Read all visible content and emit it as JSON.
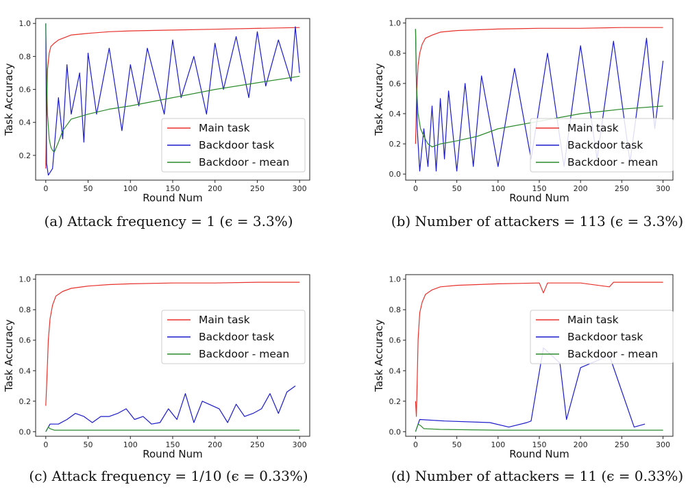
{
  "figure": {
    "panels": [
      {
        "caption": "(a)  Attack frequency = 1 (ϵ = 3.3%)",
        "xlabel": "Round Num",
        "ylabel": "Task Accuracy",
        "legend_position": "lower-right",
        "xticks": [
          0,
          50,
          100,
          150,
          200,
          250,
          300
        ],
        "yticks": [
          0.2,
          0.4,
          0.6,
          0.8,
          1.0
        ],
        "ylim": [
          0.05,
          1.03
        ]
      },
      {
        "caption": "(b)  Number of attackers = 113 (ϵ = 3.3%)",
        "xlabel": "Round Num",
        "ylabel": "Task Accuracy",
        "legend_position": "lower-right",
        "xticks": [
          0,
          50,
          100,
          150,
          200,
          250,
          300
        ],
        "yticks": [
          0.0,
          0.2,
          0.4,
          0.6,
          0.8,
          1.0
        ],
        "ylim": [
          -0.04,
          1.03
        ]
      },
      {
        "caption": "(c)  Attack frequency = 1/10 (ϵ = 0.33%)",
        "xlabel": "Round Num",
        "ylabel": "Task Accuracy",
        "legend_position": "center-right",
        "xticks": [
          0,
          50,
          100,
          150,
          200,
          250,
          300
        ],
        "yticks": [
          0.0,
          0.2,
          0.4,
          0.6,
          0.8,
          1.0
        ],
        "ylim": [
          -0.03,
          1.03
        ]
      },
      {
        "caption": "(d)  Number of attackers = 11 (ϵ = 0.33%)",
        "xlabel": "Round Num",
        "ylabel": "Task Accuracy",
        "legend_position": "center-right",
        "xticks": [
          0,
          50,
          100,
          150,
          200,
          250,
          300
        ],
        "yticks": [
          0.0,
          0.2,
          0.4,
          0.6,
          0.8,
          1.0
        ],
        "ylim": [
          -0.03,
          1.03
        ]
      }
    ]
  },
  "chart_data": [
    {
      "type": "line",
      "title": "(a) Attack frequency = 1 (ϵ = 3.3%)",
      "xlabel": "Round Num",
      "ylabel": "Task Accuracy",
      "xlim": [
        -12,
        312
      ],
      "ylim": [
        0.05,
        1.03
      ],
      "grid": false,
      "series": [
        {
          "name": "Main task",
          "color": "#e8302a",
          "x": [
            0,
            1,
            2,
            4,
            6,
            10,
            15,
            20,
            30,
            50,
            75,
            100,
            150,
            200,
            250,
            300
          ],
          "y": [
            0.12,
            0.45,
            0.72,
            0.82,
            0.86,
            0.88,
            0.9,
            0.91,
            0.93,
            0.94,
            0.95,
            0.955,
            0.96,
            0.965,
            0.97,
            0.975
          ]
        },
        {
          "name": "Backdoor task",
          "color": "#1a1acb",
          "x": [
            0,
            1,
            3,
            8,
            15,
            20,
            25,
            30,
            40,
            45,
            50,
            60,
            75,
            90,
            100,
            110,
            120,
            140,
            150,
            160,
            175,
            190,
            200,
            210,
            225,
            240,
            250,
            260,
            275,
            290,
            295,
            300
          ],
          "y": [
            1.0,
            0.15,
            0.08,
            0.12,
            0.55,
            0.3,
            0.75,
            0.45,
            0.7,
            0.28,
            0.82,
            0.45,
            0.85,
            0.35,
            0.75,
            0.5,
            0.85,
            0.45,
            0.9,
            0.55,
            0.8,
            0.45,
            0.88,
            0.6,
            0.92,
            0.55,
            0.95,
            0.62,
            0.9,
            0.65,
            0.98,
            0.7
          ]
        },
        {
          "name": "Backdoor - mean",
          "color": "#2a8a2a",
          "x": [
            0,
            1,
            2,
            4,
            6,
            8,
            10,
            15,
            20,
            30,
            50,
            75,
            100,
            150,
            200,
            250,
            300
          ],
          "y": [
            1.0,
            0.7,
            0.45,
            0.3,
            0.25,
            0.23,
            0.22,
            0.28,
            0.35,
            0.42,
            0.45,
            0.48,
            0.5,
            0.55,
            0.6,
            0.64,
            0.68
          ]
        }
      ]
    },
    {
      "type": "line",
      "title": "(b) Number of attackers = 113 (ϵ = 3.3%)",
      "xlabel": "Round Num",
      "ylabel": "Task Accuracy",
      "xlim": [
        -12,
        312
      ],
      "ylim": [
        -0.04,
        1.03
      ],
      "grid": false,
      "series": [
        {
          "name": "Main task",
          "color": "#e8302a",
          "x": [
            0,
            1,
            2,
            3,
            5,
            8,
            12,
            20,
            30,
            50,
            75,
            100,
            150,
            200,
            250,
            300
          ],
          "y": [
            0.2,
            0.45,
            0.62,
            0.72,
            0.8,
            0.86,
            0.9,
            0.92,
            0.94,
            0.95,
            0.955,
            0.96,
            0.965,
            0.965,
            0.97,
            0.97
          ]
        },
        {
          "name": "Backdoor task",
          "color": "#1a1acb",
          "x": [
            0,
            2,
            5,
            10,
            15,
            20,
            25,
            30,
            35,
            40,
            50,
            60,
            70,
            80,
            100,
            120,
            140,
            160,
            180,
            200,
            220,
            240,
            260,
            280,
            290,
            300
          ],
          "y": [
            0.96,
            0.3,
            0.02,
            0.3,
            0.05,
            0.45,
            0.02,
            0.5,
            0.1,
            0.55,
            0.02,
            0.6,
            0.05,
            0.65,
            0.05,
            0.7,
            0.1,
            0.8,
            0.05,
            0.85,
            0.1,
            0.88,
            0.08,
            0.9,
            0.3,
            0.75
          ]
        },
        {
          "name": "Backdoor - mean",
          "color": "#2a8a2a",
          "x": [
            0,
            1,
            3,
            6,
            10,
            15,
            20,
            30,
            50,
            75,
            100,
            150,
            200,
            250,
            300
          ],
          "y": [
            0.96,
            0.6,
            0.4,
            0.3,
            0.25,
            0.2,
            0.18,
            0.2,
            0.22,
            0.25,
            0.3,
            0.35,
            0.4,
            0.43,
            0.45
          ]
        }
      ]
    },
    {
      "type": "line",
      "title": "(c) Attack frequency = 1/10 (ϵ = 0.33%)",
      "xlabel": "Round Num",
      "ylabel": "Task Accuracy",
      "xlim": [
        -12,
        312
      ],
      "ylim": [
        -0.03,
        1.03
      ],
      "grid": false,
      "series": [
        {
          "name": "Main task",
          "color": "#e8302a",
          "x": [
            0,
            1,
            2,
            3,
            5,
            8,
            12,
            20,
            30,
            50,
            75,
            100,
            150,
            200,
            250,
            300
          ],
          "y": [
            0.17,
            0.3,
            0.45,
            0.6,
            0.74,
            0.83,
            0.89,
            0.92,
            0.94,
            0.955,
            0.965,
            0.97,
            0.975,
            0.975,
            0.98,
            0.98
          ]
        },
        {
          "name": "Backdoor task",
          "color": "#1a1acb",
          "x": [
            0,
            5,
            15,
            25,
            35,
            45,
            55,
            65,
            75,
            85,
            95,
            105,
            115,
            125,
            135,
            145,
            155,
            165,
            175,
            185,
            205,
            215,
            225,
            235,
            245,
            255,
            265,
            275,
            285,
            295
          ],
          "y": [
            0.0,
            0.05,
            0.05,
            0.08,
            0.12,
            0.1,
            0.06,
            0.1,
            0.1,
            0.12,
            0.15,
            0.08,
            0.1,
            0.05,
            0.06,
            0.15,
            0.08,
            0.25,
            0.06,
            0.2,
            0.15,
            0.06,
            0.18,
            0.1,
            0.12,
            0.15,
            0.25,
            0.12,
            0.26,
            0.3
          ]
        },
        {
          "name": "Backdoor - mean",
          "color": "#2a8a2a",
          "x": [
            0,
            3,
            5,
            10,
            20,
            50,
            100,
            200,
            300
          ],
          "y": [
            0.0,
            0.03,
            0.02,
            0.01,
            0.01,
            0.01,
            0.01,
            0.01,
            0.01
          ]
        }
      ]
    },
    {
      "type": "line",
      "title": "(d) Number of attackers = 11 (ϵ = 0.33%)",
      "xlabel": "Round Num",
      "ylabel": "Task Accuracy",
      "xlim": [
        -12,
        312
      ],
      "ylim": [
        -0.03,
        1.03
      ],
      "grid": false,
      "series": [
        {
          "name": "Main task",
          "color": "#e8302a",
          "x": [
            0,
            1,
            2,
            3,
            5,
            8,
            12,
            20,
            30,
            50,
            75,
            100,
            150,
            155,
            160,
            200,
            235,
            240,
            250,
            300
          ],
          "y": [
            0.2,
            0.1,
            0.35,
            0.6,
            0.78,
            0.85,
            0.9,
            0.93,
            0.95,
            0.96,
            0.965,
            0.97,
            0.975,
            0.91,
            0.975,
            0.975,
            0.95,
            0.98,
            0.98,
            0.98
          ]
        },
        {
          "name": "Backdoor task",
          "color": "#1a1acb",
          "x": [
            0,
            5,
            35,
            90,
            113,
            135,
            140,
            155,
            175,
            183,
            200,
            235,
            265,
            278
          ],
          "y": [
            0.0,
            0.08,
            0.07,
            0.06,
            0.03,
            0.06,
            0.07,
            0.55,
            0.45,
            0.08,
            0.42,
            0.5,
            0.03,
            0.05
          ]
        },
        {
          "name": "Backdoor - mean",
          "color": "#2a8a2a",
          "x": [
            0,
            3,
            6,
            10,
            30,
            100,
            200,
            300
          ],
          "y": [
            0.0,
            0.05,
            0.04,
            0.02,
            0.015,
            0.01,
            0.01,
            0.01
          ]
        }
      ]
    }
  ]
}
